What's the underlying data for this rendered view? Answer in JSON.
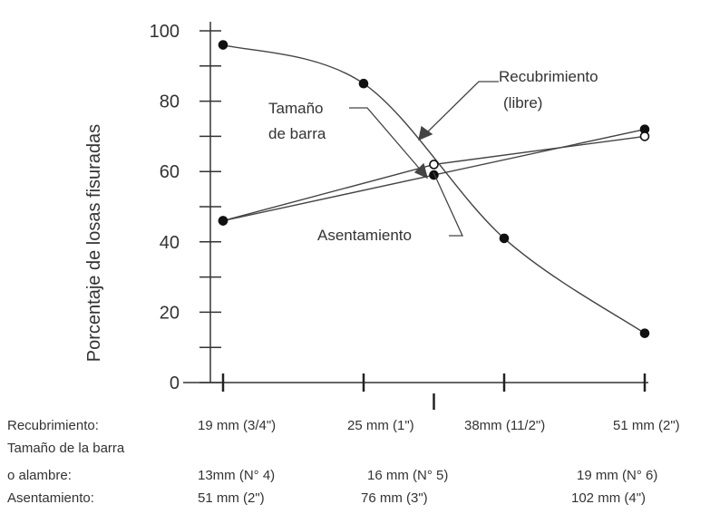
{
  "chart_data": {
    "type": "line",
    "ylabel": "Porcentaje de losas fisuradas",
    "ylim": [
      0,
      100
    ],
    "yticks": [
      0,
      20,
      40,
      60,
      80,
      100
    ],
    "x_positions": [
      1,
      2,
      3,
      4
    ],
    "xlim": [
      1,
      4
    ],
    "series": [
      {
        "name": "Recubrimiento (libre)",
        "x": [
          1,
          2,
          3,
          4
        ],
        "values": [
          96,
          85,
          41,
          14
        ],
        "smooth": true
      },
      {
        "name": "Tamaño de barra",
        "x": [
          1,
          2.5,
          4
        ],
        "values": [
          46,
          59,
          72
        ]
      },
      {
        "name": "Asentamiento",
        "x": [
          1,
          2.5,
          4
        ],
        "values": [
          46,
          62,
          70
        ]
      }
    ],
    "annotations": {
      "recubrimiento": [
        "Recubrimiento",
        "(libre)"
      ],
      "tamano": [
        "Tamaño",
        "de barra"
      ],
      "asentamiento": [
        "Asentamiento"
      ]
    },
    "x_rows": {
      "recubrimiento": {
        "label": "Recubrimiento:",
        "values": [
          "19 mm (3/4\")",
          "25 mm (1\")",
          "38mm (11/2\")",
          "51 mm (2\")"
        ]
      },
      "tamano": {
        "label_line1": "Tamaño de la barra",
        "label_line2": " o alambre:",
        "values": [
          "13mm (N° 4)",
          "16 mm (N° 5)",
          "19 mm (N° 6)"
        ]
      },
      "asentamiento": {
        "label": "Asentamiento:",
        "values": [
          "51 mm (2\")",
          "76 mm (3\")",
          "102 mm (4\")"
        ]
      }
    },
    "grid": false,
    "legend": "none"
  }
}
